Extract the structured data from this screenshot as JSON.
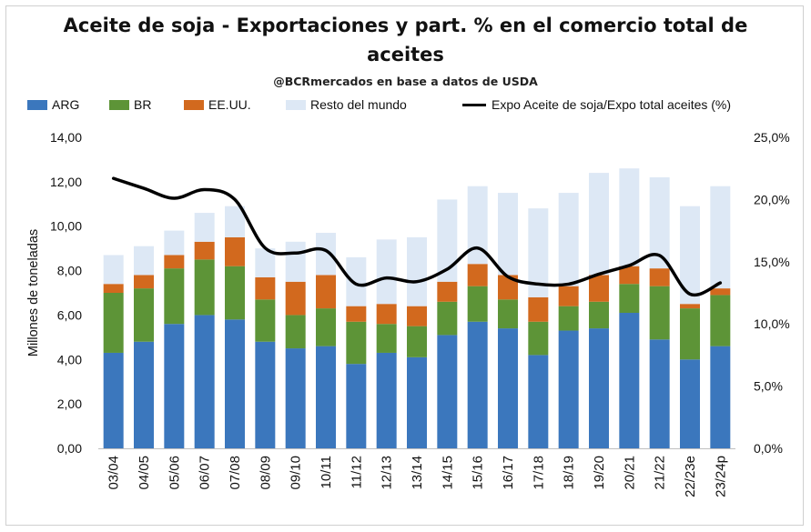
{
  "chart_data": {
    "type": "bar",
    "stacked": true,
    "title_line1": "Aceite de soja - Exportaciones y part. % en el comercio total de",
    "title_line2": "aceites",
    "subtitle": "@BCRmercados en base a datos de USDA",
    "ylabel": "Millones de toneladas",
    "ylim": [
      0,
      14
    ],
    "y_ticks": [
      "0,00",
      "2,00",
      "4,00",
      "6,00",
      "8,00",
      "10,00",
      "12,00",
      "14,00"
    ],
    "y2lim": [
      0,
      25
    ],
    "y2_ticks": [
      "0,0%",
      "5,0%",
      "10,0%",
      "15,0%",
      "20,0%",
      "25,0%"
    ],
    "legend_position": "top",
    "categories": [
      "03/04",
      "04/05",
      "05/06",
      "06/07",
      "07/08",
      "08/09",
      "09/10",
      "10/11",
      "11/12",
      "12/13",
      "13/14",
      "14/15",
      "15/16",
      "16/17",
      "17/18",
      "18/19",
      "19/20",
      "20/21",
      "21/22",
      "22/23e",
      "23/24p"
    ],
    "series": [
      {
        "name": "ARG",
        "color": "#3b77bd",
        "values": [
          4.3,
          4.8,
          5.6,
          6.0,
          5.8,
          4.8,
          4.5,
          4.6,
          3.8,
          4.3,
          4.1,
          5.1,
          5.7,
          5.4,
          4.2,
          5.3,
          5.4,
          6.1,
          4.9,
          4.0,
          4.6
        ]
      },
      {
        "name": "BR",
        "color": "#5d9437",
        "values": [
          2.7,
          2.4,
          2.5,
          2.5,
          2.4,
          1.9,
          1.5,
          1.7,
          1.9,
          1.3,
          1.4,
          1.5,
          1.6,
          1.3,
          1.5,
          1.1,
          1.2,
          1.3,
          2.4,
          2.3,
          2.3
        ]
      },
      {
        "name": "EE.UU.",
        "color": "#d2691e",
        "values": [
          0.4,
          0.6,
          0.6,
          0.8,
          1.3,
          1.0,
          1.5,
          1.5,
          0.7,
          0.9,
          0.9,
          0.9,
          1.0,
          1.1,
          1.1,
          0.9,
          1.2,
          0.8,
          0.8,
          0.2,
          0.3
        ]
      },
      {
        "name": "Resto del mundo",
        "color": "#dde8f5",
        "values": [
          1.3,
          1.3,
          1.1,
          1.3,
          1.4,
          1.3,
          1.8,
          1.9,
          2.2,
          2.9,
          3.1,
          3.7,
          3.5,
          3.7,
          4.0,
          4.2,
          4.6,
          4.4,
          4.1,
          4.4,
          4.6
        ]
      },
      {
        "name": "Expo Aceite de soja/Expo total aceites (%)",
        "type": "line",
        "axis": "right",
        "color": "#000000",
        "values": [
          21.7,
          20.9,
          20.1,
          20.8,
          20.0,
          16.1,
          15.7,
          15.9,
          13.2,
          13.7,
          13.4,
          14.4,
          16.1,
          13.8,
          13.2,
          13.2,
          14.0,
          14.7,
          15.5,
          12.4,
          13.3
        ]
      }
    ]
  }
}
